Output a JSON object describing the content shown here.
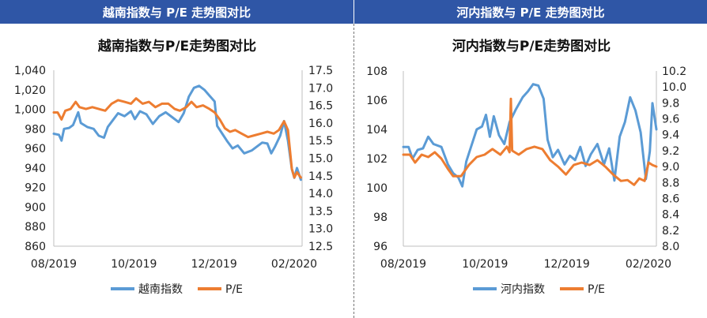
{
  "charts": [
    {
      "header": "越南指数与 P/E 走势图对比",
      "chart_data": {
        "type": "line",
        "title": "越南指数与P/E走势图对比",
        "x_tick_labels": [
          "08/2019",
          "10/2019",
          "12/2019",
          "02/2020"
        ],
        "x_range": [
          "2019-08-01",
          "2020-02-10"
        ],
        "y_left": {
          "range": [
            860,
            1040
          ],
          "ticks": [
            "860",
            "880",
            "900",
            "920",
            "940",
            "960",
            "980",
            "1,000",
            "1,020",
            "1,040"
          ]
        },
        "y_right": {
          "range": [
            12.5,
            17.5
          ],
          "ticks": [
            "12.5",
            "13.0",
            "13.5",
            "14.0",
            "14.5",
            "15.0",
            "15.5",
            "16.0",
            "16.5",
            "17.0",
            "17.5"
          ]
        },
        "legend_position": "bottom",
        "series": [
          {
            "name": "越南指数",
            "axis": "left",
            "color": "#5b9bd5",
            "values": [
              [
                "2019-08-01",
                975
              ],
              [
                "2019-08-05",
                974
              ],
              [
                "2019-08-07",
                968
              ],
              [
                "2019-08-09",
                980
              ],
              [
                "2019-08-13",
                981
              ],
              [
                "2019-08-16",
                984
              ],
              [
                "2019-08-20",
                997
              ],
              [
                "2019-08-22",
                986
              ],
              [
                "2019-08-27",
                982
              ],
              [
                "2019-09-01",
                980
              ],
              [
                "2019-09-05",
                973
              ],
              [
                "2019-09-09",
                971
              ],
              [
                "2019-09-12",
                982
              ],
              [
                "2019-09-16",
                989
              ],
              [
                "2019-09-20",
                996
              ],
              [
                "2019-09-25",
                993
              ],
              [
                "2019-09-30",
                998
              ],
              [
                "2019-10-03",
                990
              ],
              [
                "2019-10-07",
                998
              ],
              [
                "2019-10-12",
                995
              ],
              [
                "2019-10-17",
                985
              ],
              [
                "2019-10-22",
                993
              ],
              [
                "2019-10-27",
                997
              ],
              [
                "2019-11-01",
                992
              ],
              [
                "2019-11-06",
                987
              ],
              [
                "2019-11-10",
                996
              ],
              [
                "2019-11-14",
                1013
              ],
              [
                "2019-11-18",
                1022
              ],
              [
                "2019-11-22",
                1024
              ],
              [
                "2019-11-26",
                1020
              ],
              [
                "2019-11-30",
                1014
              ],
              [
                "2019-12-04",
                1008
              ],
              [
                "2019-12-06",
                983
              ],
              [
                "2019-12-10",
                975
              ],
              [
                "2019-12-14",
                967
              ],
              [
                "2019-12-18",
                960
              ],
              [
                "2019-12-22",
                963
              ],
              [
                "2019-12-27",
                955
              ],
              [
                "2020-01-02",
                958
              ],
              [
                "2020-01-06",
                962
              ],
              [
                "2020-01-10",
                966
              ],
              [
                "2020-01-14",
                965
              ],
              [
                "2020-01-17",
                955
              ],
              [
                "2020-01-20",
                962
              ],
              [
                "2020-01-24",
                973
              ],
              [
                "2020-01-27",
                988
              ],
              [
                "2020-01-30",
                968
              ],
              [
                "2020-02-02",
                939
              ],
              [
                "2020-02-04",
                930
              ],
              [
                "2020-02-06",
                940
              ],
              [
                "2020-02-09",
                928
              ]
            ]
          },
          {
            "name": "P/E",
            "axis": "right",
            "color": "#ed7d31",
            "values": [
              [
                "2019-08-01",
                16.3
              ],
              [
                "2019-08-04",
                16.3
              ],
              [
                "2019-08-07",
                16.1
              ],
              [
                "2019-08-10",
                16.35
              ],
              [
                "2019-08-14",
                16.4
              ],
              [
                "2019-08-18",
                16.6
              ],
              [
                "2019-08-21",
                16.45
              ],
              [
                "2019-08-26",
                16.4
              ],
              [
                "2019-08-31",
                16.45
              ],
              [
                "2019-09-05",
                16.4
              ],
              [
                "2019-09-10",
                16.35
              ],
              [
                "2019-09-15",
                16.55
              ],
              [
                "2019-09-20",
                16.65
              ],
              [
                "2019-09-25",
                16.6
              ],
              [
                "2019-09-30",
                16.55
              ],
              [
                "2019-10-04",
                16.7
              ],
              [
                "2019-10-09",
                16.55
              ],
              [
                "2019-10-14",
                16.6
              ],
              [
                "2019-10-19",
                16.45
              ],
              [
                "2019-10-24",
                16.55
              ],
              [
                "2019-10-29",
                16.55
              ],
              [
                "2019-11-03",
                16.4
              ],
              [
                "2019-11-07",
                16.35
              ],
              [
                "2019-11-12",
                16.45
              ],
              [
                "2019-11-16",
                16.6
              ],
              [
                "2019-11-20",
                16.45
              ],
              [
                "2019-11-25",
                16.5
              ],
              [
                "2019-11-30",
                16.4
              ],
              [
                "2019-12-04",
                16.3
              ],
              [
                "2019-12-08",
                16.1
              ],
              [
                "2019-12-12",
                15.85
              ],
              [
                "2019-12-16",
                15.75
              ],
              [
                "2019-12-20",
                15.8
              ],
              [
                "2019-12-25",
                15.7
              ],
              [
                "2019-12-30",
                15.6
              ],
              [
                "2020-01-04",
                15.65
              ],
              [
                "2020-01-09",
                15.7
              ],
              [
                "2020-01-14",
                15.75
              ],
              [
                "2020-01-19",
                15.7
              ],
              [
                "2020-01-23",
                15.8
              ],
              [
                "2020-01-27",
                16.05
              ],
              [
                "2020-01-30",
                15.8
              ],
              [
                "2020-02-02",
                14.7
              ],
              [
                "2020-02-04",
                14.45
              ],
              [
                "2020-02-06",
                14.6
              ],
              [
                "2020-02-09",
                14.45
              ]
            ]
          }
        ]
      }
    },
    {
      "header": "河内指数与 P/E 走势图对比",
      "chart_data": {
        "type": "line",
        "title": "河内指数与P/E走势图对比",
        "x_tick_labels": [
          "08/2019",
          "10/2019",
          "12/2019",
          "02/2020"
        ],
        "x_range": [
          "2019-08-01",
          "2020-02-10"
        ],
        "y_left": {
          "range": [
            96,
            108
          ],
          "ticks": [
            "96",
            "98",
            "100",
            "102",
            "104",
            "106",
            "108"
          ]
        },
        "y_right": {
          "range": [
            8.0,
            10.2
          ],
          "ticks": [
            "8.0",
            "8.2",
            "8.4",
            "8.6",
            "8.8",
            "9.0",
            "9.2",
            "9.4",
            "9.6",
            "9.8",
            "10.0",
            "10.2"
          ]
        },
        "legend_position": "bottom",
        "series": [
          {
            "name": "河内指数",
            "axis": "left",
            "color": "#5b9bd5",
            "values": [
              [
                "2019-08-01",
                102.8
              ],
              [
                "2019-08-05",
                102.8
              ],
              [
                "2019-08-08",
                102.0
              ],
              [
                "2019-08-12",
                102.6
              ],
              [
                "2019-08-16",
                102.7
              ],
              [
                "2019-08-20",
                103.5
              ],
              [
                "2019-08-24",
                103.0
              ],
              [
                "2019-08-30",
                102.8
              ],
              [
                "2019-09-04",
                101.6
              ],
              [
                "2019-09-08",
                101.0
              ],
              [
                "2019-09-12",
                100.7
              ],
              [
                "2019-09-15",
                100.1
              ],
              [
                "2019-09-18",
                101.8
              ],
              [
                "2019-09-22",
                102.9
              ],
              [
                "2019-09-26",
                104.0
              ],
              [
                "2019-09-30",
                104.2
              ],
              [
                "2019-10-03",
                105.0
              ],
              [
                "2019-10-06",
                103.5
              ],
              [
                "2019-10-09",
                104.9
              ],
              [
                "2019-10-13",
                103.6
              ],
              [
                "2019-10-17",
                103.0
              ],
              [
                "2019-10-21",
                104.5
              ],
              [
                "2019-10-26",
                105.4
              ],
              [
                "2019-10-31",
                106.2
              ],
              [
                "2019-11-04",
                106.6
              ],
              [
                "2019-11-08",
                107.1
              ],
              [
                "2019-11-12",
                107.0
              ],
              [
                "2019-11-16",
                106.1
              ],
              [
                "2019-11-19",
                103.3
              ],
              [
                "2019-11-23",
                102.1
              ],
              [
                "2019-11-27",
                102.6
              ],
              [
                "2019-12-02",
                101.6
              ],
              [
                "2019-12-06",
                102.2
              ],
              [
                "2019-12-10",
                101.9
              ],
              [
                "2019-12-14",
                102.8
              ],
              [
                "2019-12-18",
                101.5
              ],
              [
                "2019-12-22",
                102.3
              ],
              [
                "2019-12-27",
                103.0
              ],
              [
                "2020-01-01",
                101.6
              ],
              [
                "2020-01-05",
                102.7
              ],
              [
                "2020-01-09",
                100.5
              ],
              [
                "2020-01-13",
                103.5
              ],
              [
                "2020-01-17",
                104.5
              ],
              [
                "2020-01-21",
                106.2
              ],
              [
                "2020-01-25",
                105.3
              ],
              [
                "2020-01-29",
                103.8
              ],
              [
                "2020-02-02",
                100.6
              ],
              [
                "2020-02-05",
                102.5
              ],
              [
                "2020-02-07",
                105.8
              ],
              [
                "2020-02-10",
                104.0
              ]
            ]
          },
          {
            "name": "P/E",
            "axis": "right",
            "color": "#ed7d31",
            "values": [
              [
                "2019-08-01",
                9.15
              ],
              [
                "2019-08-06",
                9.15
              ],
              [
                "2019-08-10",
                9.05
              ],
              [
                "2019-08-15",
                9.15
              ],
              [
                "2019-08-20",
                9.12
              ],
              [
                "2019-08-25",
                9.18
              ],
              [
                "2019-08-30",
                9.1
              ],
              [
                "2019-09-04",
                8.97
              ],
              [
                "2019-09-08",
                8.88
              ],
              [
                "2019-09-14",
                8.88
              ],
              [
                "2019-09-20",
                9.02
              ],
              [
                "2019-09-26",
                9.12
              ],
              [
                "2019-10-02",
                9.15
              ],
              [
                "2019-10-08",
                9.22
              ],
              [
                "2019-10-14",
                9.15
              ],
              [
                "2019-10-19",
                9.25
              ],
              [
                "2019-10-21",
                9.18
              ],
              [
                "2019-10-22",
                9.85
              ],
              [
                "2019-10-23",
                9.2
              ],
              [
                "2019-10-28",
                9.15
              ],
              [
                "2019-11-03",
                9.22
              ],
              [
                "2019-11-09",
                9.25
              ],
              [
                "2019-11-15",
                9.22
              ],
              [
                "2019-11-21",
                9.08
              ],
              [
                "2019-11-27",
                9.0
              ],
              [
                "2019-12-03",
                8.9
              ],
              [
                "2019-12-09",
                9.02
              ],
              [
                "2019-12-15",
                9.05
              ],
              [
                "2019-12-21",
                9.02
              ],
              [
                "2019-12-27",
                9.08
              ],
              [
                "2020-01-02",
                9.0
              ],
              [
                "2020-01-08",
                8.9
              ],
              [
                "2020-01-14",
                8.82
              ],
              [
                "2020-01-19",
                8.83
              ],
              [
                "2020-01-24",
                8.77
              ],
              [
                "2020-01-28",
                8.85
              ],
              [
                "2020-02-01",
                8.82
              ],
              [
                "2020-02-04",
                9.05
              ],
              [
                "2020-02-07",
                9.02
              ],
              [
                "2020-02-10",
                9.0
              ]
            ]
          }
        ]
      }
    }
  ]
}
